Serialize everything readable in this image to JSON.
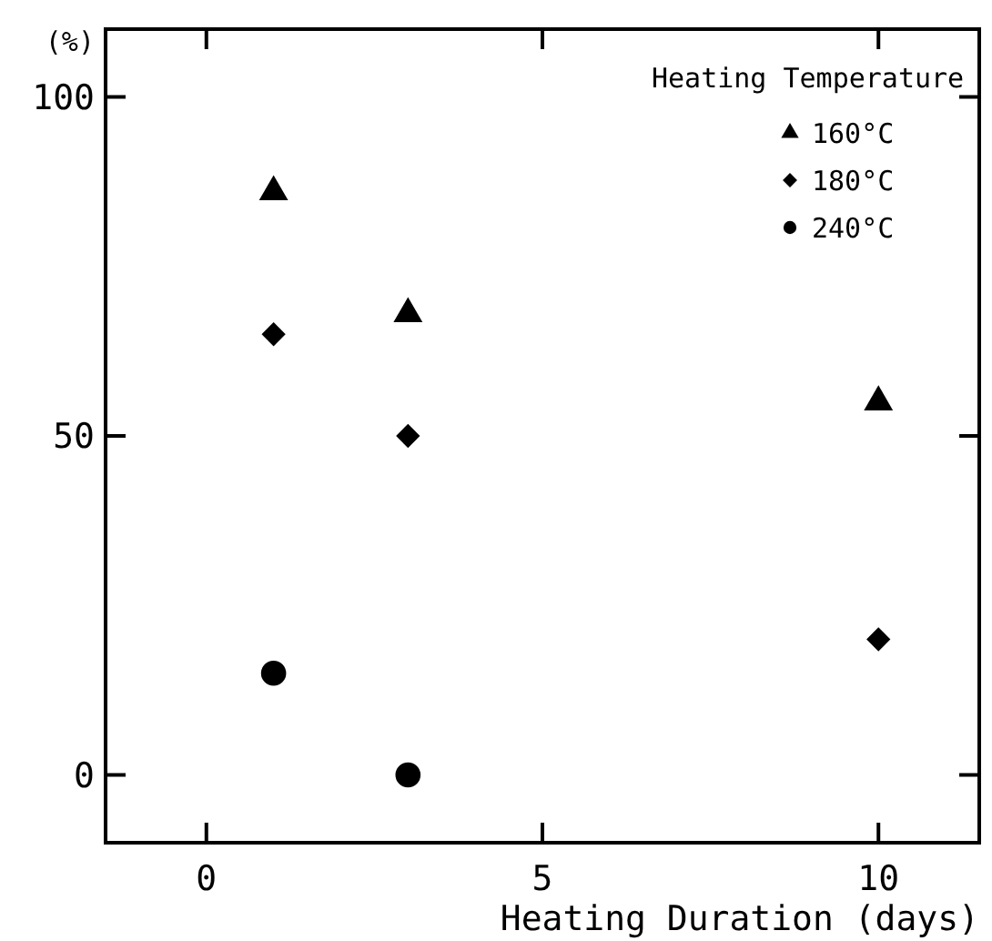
{
  "chart_data": {
    "type": "scatter",
    "xlabel": "Heating Duration (days)",
    "ylabel": "(%)",
    "legend_title": "Heating Temperature",
    "legend": "top right",
    "grid": false,
    "xlim": [
      -1.5,
      11.5
    ],
    "xticks": [
      0,
      5,
      10
    ],
    "ylim": [
      -10,
      110
    ],
    "yticks": [
      0,
      50,
      100
    ],
    "series": [
      {
        "name": "160°C",
        "color": "#000000",
        "marker": "triangle",
        "x": [
          1,
          3,
          10
        ],
        "values": [
          86,
          68,
          55
        ]
      },
      {
        "name": "180°C",
        "color": "#000000",
        "marker": "diamond",
        "x": [
          1,
          3,
          10
        ],
        "values": [
          65,
          50,
          20
        ]
      },
      {
        "name": "240°C",
        "color": "#000000",
        "marker": "circle",
        "x": [
          1,
          3
        ],
        "values": [
          15,
          0
        ]
      }
    ]
  }
}
